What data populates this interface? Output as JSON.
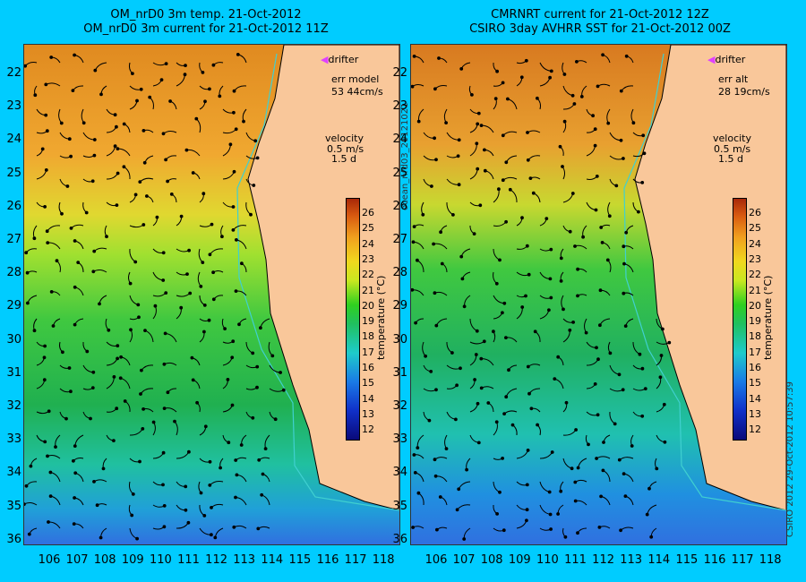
{
  "left_panel": {
    "title_line1": "OM_nrD0 3m temp. 21-Oct-2012",
    "title_line2": "OM_nrD0 3m current for 21-Oct-2012 11Z",
    "legend_drifter": "drifter",
    "err_label": "err model",
    "err_value": "53 44cm/s",
    "velocity_label": "velocity",
    "velocity_scale": "0.5 m/s",
    "velocity_time": "1.5 d"
  },
  "right_panel": {
    "title_line1": "CMRNRT current for 21-Oct-2012 12Z",
    "title_line2": "CSIRO 3day AVHRR SST for 21-Oct-2012 00Z",
    "legend_drifter": "drifter",
    "err_label": "err alt",
    "err_value": "28 19cm/s",
    "velocity_label": "velocity",
    "velocity_scale": "0.5 m/s",
    "velocity_time": "1.5 d"
  },
  "colorbar": {
    "label": "temperature (°C)",
    "ticks": [
      "26",
      "25",
      "24",
      "23",
      "22",
      "21",
      "20",
      "19",
      "18",
      "17",
      "16",
      "15",
      "14",
      "13",
      "12"
    ]
  },
  "latitudes": [
    "22",
    "23",
    "24",
    "25",
    "26",
    "27",
    "28",
    "29",
    "30",
    "31",
    "32",
    "33",
    "34",
    "35",
    "36"
  ],
  "longitudes": [
    "106",
    "107",
    "108",
    "109",
    "110",
    "111",
    "112",
    "113",
    "114",
    "115",
    "116",
    "117",
    "118"
  ],
  "side_text": "ocean_nrd03_20121021",
  "credit_text": "CSIRO 2012   29-Oct-2012 10:57:39",
  "colors": {
    "background": "#00ccff",
    "land": "#f9c79a",
    "drifter": "#e040ff",
    "isobath": "#40d0d0"
  }
}
